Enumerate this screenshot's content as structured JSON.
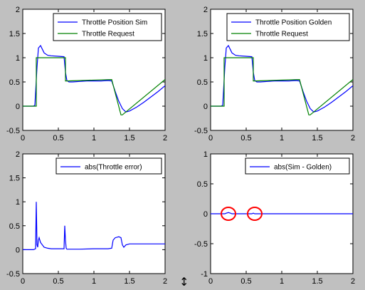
{
  "figure": {
    "background": "#c0c0c0"
  },
  "chart_data": [
    {
      "type": "line",
      "xlim": [
        0,
        2
      ],
      "ylim": [
        -0.5,
        2
      ],
      "xticks": [
        "0",
        "0.5",
        "1",
        "1.5",
        "2"
      ],
      "yticks": [
        "-0.5",
        "0",
        "0.5",
        "1",
        "1.5",
        "2"
      ],
      "legend": {
        "position": "top-right"
      },
      "series": [
        {
          "name": "Throttle Position Sim",
          "color": "#0000ff",
          "x": [
            0,
            0.15,
            0.17,
            0.2,
            0.22,
            0.25,
            0.3,
            0.35,
            0.4,
            0.5,
            0.58,
            0.6,
            0.62,
            0.65,
            0.7,
            0.8,
            0.9,
            1.0,
            1.1,
            1.2,
            1.25,
            1.3,
            1.35,
            1.4,
            1.45,
            1.5,
            1.6,
            1.7,
            1.8,
            1.9,
            2.0
          ],
          "y": [
            0,
            0,
            0.02,
            0.8,
            1.2,
            1.25,
            1.1,
            1.05,
            1.04,
            1.03,
            1.02,
            0.7,
            0.53,
            0.5,
            0.5,
            0.51,
            0.52,
            0.52,
            0.52,
            0.53,
            0.52,
            0.3,
            0.1,
            -0.05,
            -0.12,
            -0.1,
            -0.02,
            0.08,
            0.19,
            0.3,
            0.42
          ]
        },
        {
          "name": "Throttle Request",
          "color": "#008000",
          "x": [
            0,
            0.19,
            0.19,
            0.22,
            0.6,
            0.6,
            0.62,
            1.25,
            1.38,
            1.4,
            2.0
          ],
          "y": [
            0,
            0,
            1.0,
            1.0,
            1.0,
            0.52,
            0.52,
            0.55,
            -0.18,
            -0.18,
            0.55
          ]
        }
      ]
    },
    {
      "type": "line",
      "xlim": [
        0,
        2
      ],
      "ylim": [
        -0.5,
        2
      ],
      "xticks": [
        "0",
        "0.5",
        "1",
        "1.5",
        "2"
      ],
      "yticks": [
        "-0.5",
        "0",
        "0.5",
        "1",
        "1.5",
        "2"
      ],
      "legend": {
        "position": "top-right"
      },
      "series": [
        {
          "name": "Throttle Position Golden",
          "color": "#0000ff",
          "x": [
            0,
            0.15,
            0.17,
            0.2,
            0.22,
            0.25,
            0.3,
            0.35,
            0.4,
            0.5,
            0.58,
            0.6,
            0.62,
            0.65,
            0.7,
            0.8,
            0.9,
            1.0,
            1.1,
            1.2,
            1.25,
            1.3,
            1.35,
            1.4,
            1.45,
            1.5,
            1.6,
            1.7,
            1.8,
            1.9,
            2.0
          ],
          "y": [
            0,
            0,
            0.02,
            0.8,
            1.2,
            1.25,
            1.1,
            1.05,
            1.04,
            1.03,
            1.02,
            0.7,
            0.53,
            0.5,
            0.5,
            0.51,
            0.52,
            0.52,
            0.52,
            0.53,
            0.52,
            0.3,
            0.1,
            -0.05,
            -0.12,
            -0.1,
            -0.02,
            0.08,
            0.19,
            0.3,
            0.42
          ]
        },
        {
          "name": "Throttle Request",
          "color": "#008000",
          "x": [
            0,
            0.19,
            0.19,
            0.22,
            0.6,
            0.6,
            0.62,
            1.25,
            1.38,
            1.4,
            2.0
          ],
          "y": [
            0,
            0,
            1.0,
            1.0,
            1.0,
            0.52,
            0.52,
            0.55,
            -0.18,
            -0.18,
            0.55
          ]
        }
      ]
    },
    {
      "type": "line",
      "xlim": [
        0,
        2
      ],
      "ylim": [
        -0.5,
        2
      ],
      "xticks": [
        "0",
        "0.5",
        "1",
        "1.5",
        "2"
      ],
      "yticks": [
        "-0.5",
        "0",
        "0.5",
        "1",
        "1.5",
        "2"
      ],
      "legend": {
        "position": "top-right"
      },
      "series": [
        {
          "name": "abs(Throttle error)",
          "color": "#0000ff",
          "x": [
            0,
            0.15,
            0.18,
            0.19,
            0.2,
            0.21,
            0.22,
            0.23,
            0.25,
            0.3,
            0.35,
            0.4,
            0.5,
            0.58,
            0.59,
            0.6,
            0.61,
            0.62,
            0.65,
            0.7,
            0.8,
            1.0,
            1.2,
            1.25,
            1.27,
            1.3,
            1.35,
            1.38,
            1.4,
            1.42,
            1.45,
            1.5,
            1.6,
            2.0
          ],
          "y": [
            0,
            0,
            0.02,
            1.0,
            0.1,
            0.05,
            0.2,
            0.25,
            0.15,
            0.05,
            0.03,
            0.02,
            0.02,
            0.02,
            0.5,
            0.2,
            0.03,
            0.01,
            0.01,
            0.01,
            0.01,
            0.02,
            0.02,
            0.03,
            0.2,
            0.25,
            0.27,
            0.25,
            0.1,
            0.05,
            0.1,
            0.12,
            0.12,
            0.12
          ]
        }
      ]
    },
    {
      "type": "line",
      "xlim": [
        0,
        2
      ],
      "ylim": [
        -1,
        1
      ],
      "xticks": [
        "0",
        "0.5",
        "1",
        "1.5",
        "2"
      ],
      "yticks": [
        "-1",
        "-0.5",
        "0",
        "0.5",
        "1"
      ],
      "legend": {
        "position": "top-right"
      },
      "series": [
        {
          "name": "abs(Sim - Golden)",
          "color": "#0000ff",
          "x": [
            0,
            0.2,
            0.22,
            0.25,
            0.28,
            0.3,
            0.35,
            0.58,
            0.6,
            0.62,
            0.65,
            0.7,
            2.0
          ],
          "y": [
            0,
            0,
            0.01,
            0.02,
            0.01,
            0.0,
            0.0,
            0.0,
            0.01,
            0.0,
            0.0,
            0.0,
            0.0
          ]
        }
      ],
      "annotations": [
        {
          "shape": "circle",
          "color": "#ff0000",
          "x": 0.25,
          "y": 0.0
        },
        {
          "shape": "circle",
          "color": "#ff0000",
          "x": 0.62,
          "y": 0.0
        }
      ]
    }
  ]
}
